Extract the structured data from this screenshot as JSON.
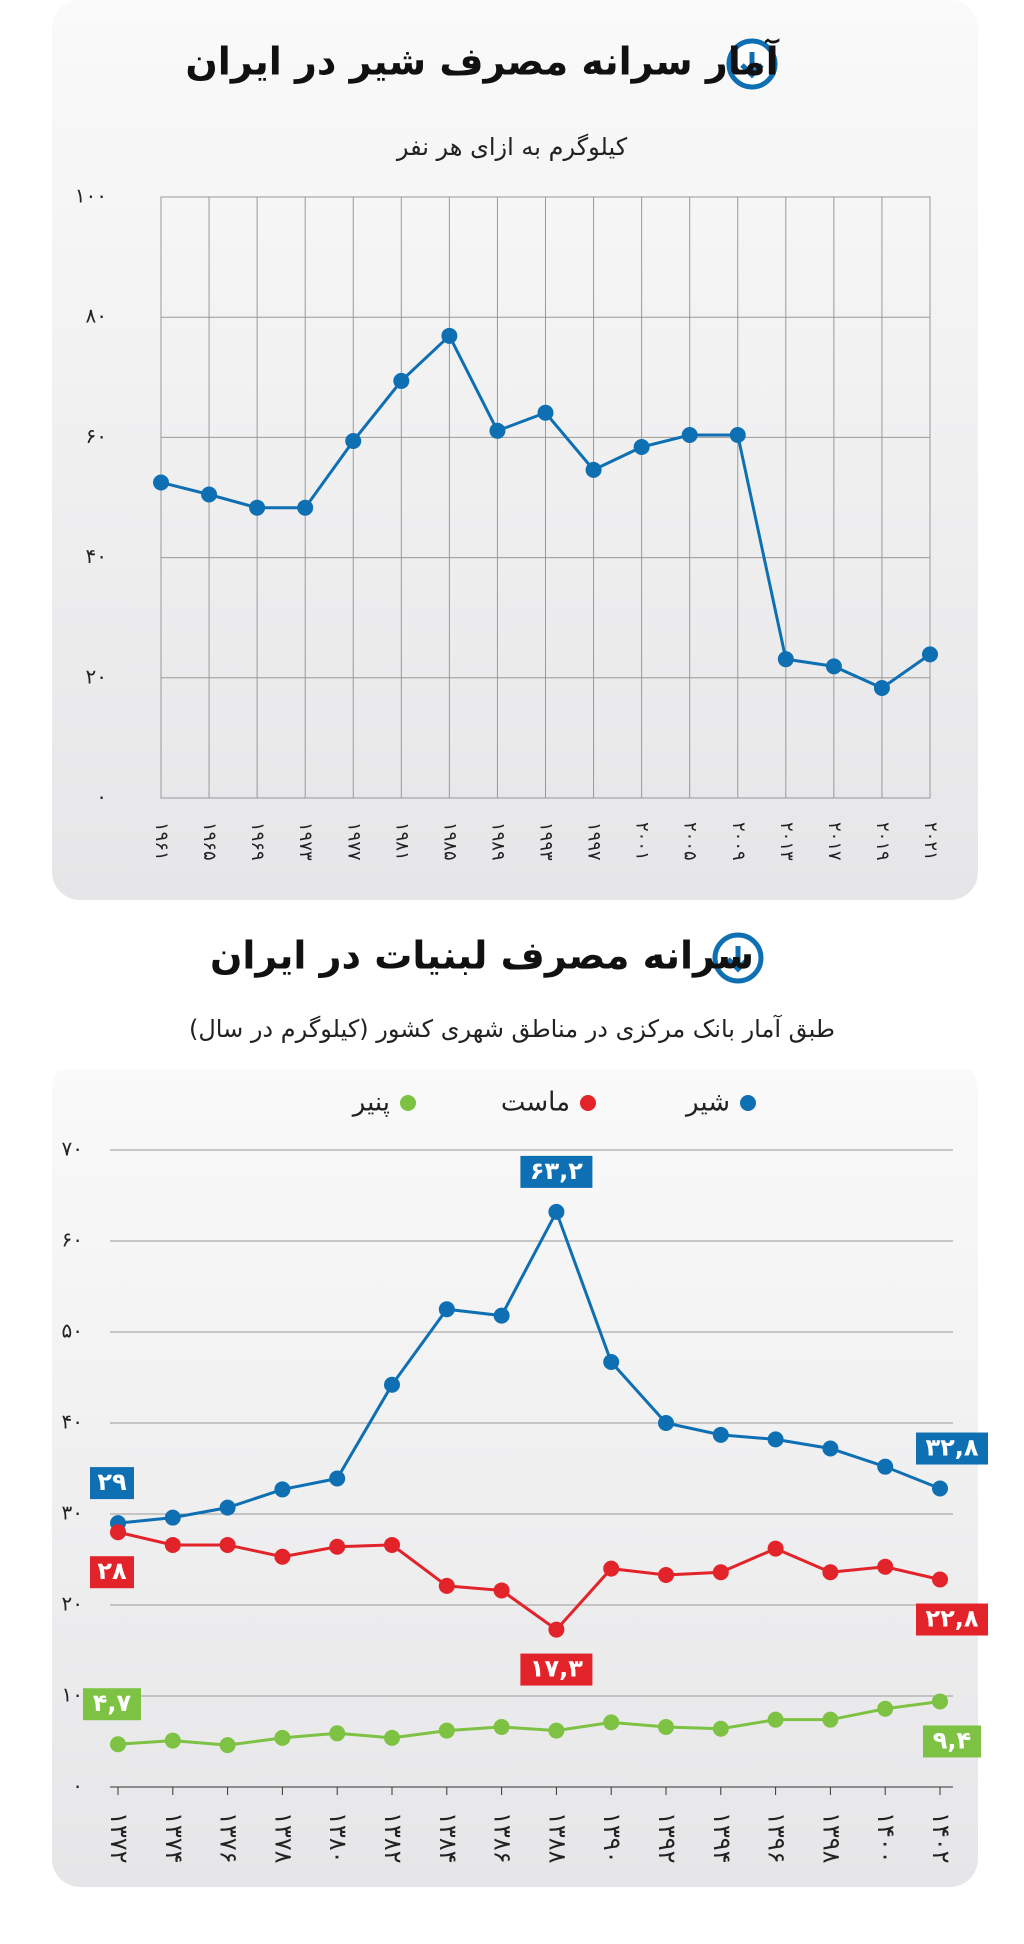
{
  "chart_data": [
    {
      "type": "line",
      "title": "آمار سرانه مصرف شیر در ایران",
      "subtitle": "کیلوگرم به ازای هر نفر",
      "categories": [
        "۱۹۶۱",
        "۱۹۶۵",
        "۱۹۶۹",
        "۱۹۷۳",
        "۱۹۷۷",
        "۱۹۸۱",
        "۱۹۸۵",
        "۱۹۸۹",
        "۱۹۹۳",
        "۱۹۹۷",
        "۲۰۰۱",
        "۲۰۰۵",
        "۲۰۰۹",
        "۲۰۱۳",
        "۲۰۱۷",
        "۲۰۱۹",
        "۲۰۲۱"
      ],
      "series": [
        {
          "color": "#0f6fb3",
          "values": [
            52.5,
            50.5,
            48.3,
            48.3,
            59.4,
            69.4,
            76.9,
            61.1,
            64.1,
            54.6,
            58.4,
            60.4,
            60.4,
            23.1,
            21.9,
            18.3,
            23.9
          ]
        }
      ],
      "ylim": [
        0,
        100
      ],
      "yticks": [
        {
          "value": 0,
          "label": "۰"
        },
        {
          "value": 20,
          "label": "۲۰"
        },
        {
          "value": 40,
          "label": "۴۰"
        },
        {
          "value": 60,
          "label": "۶۰"
        },
        {
          "value": 80,
          "label": "۸۰"
        },
        {
          "value": 100,
          "label": "۱۰۰"
        }
      ],
      "grid": "both"
    },
    {
      "type": "line",
      "title": "سرانه مصرف لبنیات در ایران",
      "subtitle": "طبق آمار بانک مرکزی در مناطق شهری کشور (کیلوگرم در سال)",
      "categories": [
        "۱۳۷۲",
        "۱۳۷۴",
        "۱۳۷۶",
        "۱۳۷۸",
        "۱۳۸۰",
        "۱۳۸۲",
        "۱۳۸۴",
        "۱۳۸۶",
        "۱۳۸۸",
        "۱۳۹۰",
        "۱۳۹۲",
        "۱۳۹۴",
        "۱۳۹۶",
        "۱۳۹۸",
        "۱۴۰۰",
        "۱۴۰۲"
      ],
      "series": [
        {
          "name": "شیر",
          "color": "#0f6fb3",
          "values": [
            29,
            29.6,
            30.7,
            32.7,
            33.9,
            44.2,
            52.5,
            51.8,
            63.2,
            46.7,
            40.0,
            38.7,
            38.2,
            37.2,
            35.2,
            32.8
          ],
          "value_labels": [
            "۲۹",
            null,
            null,
            null,
            null,
            null,
            null,
            null,
            "۶۳,۲",
            null,
            null,
            null,
            null,
            null,
            null,
            "۳۲,۸"
          ]
        },
        {
          "name": "ماست",
          "color": "#e3232a",
          "values": [
            28,
            26.6,
            26.6,
            25.3,
            26.4,
            26.6,
            22.1,
            21.6,
            17.3,
            24.0,
            23.3,
            23.6,
            26.2,
            23.6,
            24.2,
            22.8
          ],
          "value_labels": [
            "۲۸",
            null,
            null,
            null,
            null,
            null,
            null,
            null,
            "۱۷,۳",
            null,
            null,
            null,
            null,
            null,
            null,
            "۲۲,۸"
          ]
        },
        {
          "name": "پنیر",
          "color": "#7dc242",
          "values": [
            4.7,
            5.1,
            4.6,
            5.4,
            5.9,
            5.4,
            6.2,
            6.6,
            6.2,
            7.1,
            6.6,
            6.4,
            7.4,
            7.4,
            8.6,
            9.4
          ],
          "value_labels": [
            "۴,۷",
            null,
            null,
            null,
            null,
            null,
            null,
            null,
            null,
            null,
            null,
            null,
            null,
            null,
            null,
            "۹,۴"
          ]
        }
      ],
      "ylim": [
        0,
        70
      ],
      "yticks": [
        {
          "value": 0,
          "label": "۰"
        },
        {
          "value": 10,
          "label": "۱۰"
        },
        {
          "value": 20,
          "label": "۲۰"
        },
        {
          "value": 30,
          "label": "۳۰"
        },
        {
          "value": 40,
          "label": "۴۰"
        },
        {
          "value": 50,
          "label": "۵۰"
        },
        {
          "value": 60,
          "label": "۶۰"
        },
        {
          "value": 70,
          "label": "۷۰"
        }
      ],
      "grid": "y"
    }
  ]
}
